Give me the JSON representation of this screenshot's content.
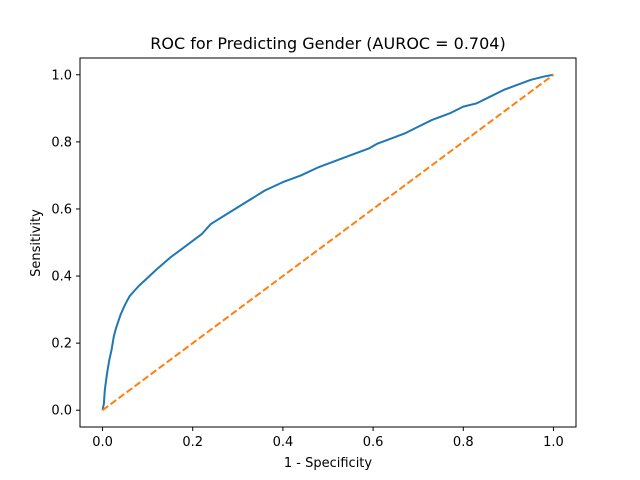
{
  "chart_data": {
    "type": "line",
    "title": "ROC for Predicting Gender (AUROC = 0.704)",
    "xlabel": "1 - Specificity",
    "ylabel": "Sensitivity",
    "xlim": [
      -0.05,
      1.05
    ],
    "ylim": [
      -0.05,
      1.05
    ],
    "xticks": [
      0.0,
      0.2,
      0.4,
      0.6,
      0.8,
      1.0
    ],
    "yticks": [
      0.0,
      0.2,
      0.4,
      0.6,
      0.8,
      1.0
    ],
    "xtick_labels": [
      "0.0",
      "0.2",
      "0.4",
      "0.6",
      "0.8",
      "1.0"
    ],
    "ytick_labels": [
      "0.0",
      "0.2",
      "0.4",
      "0.6",
      "0.8",
      "1.0"
    ],
    "grid": false,
    "legend": false,
    "series": [
      {
        "color": "#1f77b4",
        "style": "solid",
        "x": [
          0.0,
          0.003,
          0.005,
          0.01,
          0.015,
          0.02,
          0.025,
          0.03,
          0.04,
          0.05,
          0.06,
          0.07,
          0.08,
          0.1,
          0.12,
          0.15,
          0.18,
          0.2,
          0.22,
          0.24,
          0.27,
          0.3,
          0.33,
          0.36,
          0.4,
          0.44,
          0.48,
          0.52,
          0.56,
          0.59,
          0.61,
          0.64,
          0.67,
          0.7,
          0.73,
          0.77,
          0.8,
          0.83,
          0.86,
          0.89,
          0.92,
          0.95,
          0.98,
          1.0
        ],
        "y": [
          0.0,
          0.02,
          0.06,
          0.11,
          0.15,
          0.18,
          0.22,
          0.245,
          0.285,
          0.315,
          0.34,
          0.355,
          0.37,
          0.395,
          0.42,
          0.455,
          0.485,
          0.505,
          0.525,
          0.555,
          0.58,
          0.605,
          0.63,
          0.655,
          0.68,
          0.7,
          0.725,
          0.745,
          0.765,
          0.78,
          0.795,
          0.81,
          0.825,
          0.845,
          0.865,
          0.885,
          0.905,
          0.915,
          0.935,
          0.955,
          0.97,
          0.985,
          0.995,
          1.0
        ]
      },
      {
        "color": "#ff7f0e",
        "style": "dashed",
        "x": [
          0.0,
          1.0
        ],
        "y": [
          0.0,
          1.0
        ]
      }
    ]
  }
}
